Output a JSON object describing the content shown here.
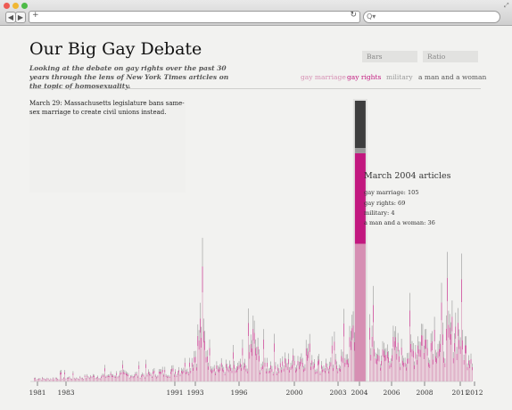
{
  "browser": {
    "back_label": "◀",
    "forward_label": "▶",
    "new_tab_label": "+",
    "reload_label": "↻",
    "search_label": "Q▾"
  },
  "page": {
    "title": "Our Big Gay Debate",
    "subtitle": "Looking at the debate on gay rights over the past 30 years through the lens of New York Times articles on the topic of homosexuality.",
    "modes": [
      "Bars",
      "Ratio"
    ],
    "legend": [
      {
        "label": "gay marriage",
        "color": "#d68fb3"
      },
      {
        "label": "gay rights",
        "color": "#c2187f"
      },
      {
        "label": "military",
        "color": "#9a9a9a"
      },
      {
        "label": "a man and a woman",
        "color": "#555555"
      }
    ],
    "event_note": "March 29: Massachusetts legislature bans same-sex marriage to create civil unions instead."
  },
  "tooltip": {
    "title": "March 2004 articles",
    "rows": [
      "gay marriage: 105",
      "gay rights: 69",
      "military: 4",
      "a man and a woman: 36"
    ]
  },
  "colors": {
    "gay_marriage": "#d68fb3",
    "gay_rights": "#c2187f",
    "military": "#9a9a9a",
    "man_woman": "#555555",
    "highlight": "#3e3e3e"
  },
  "chart_data": {
    "type": "bar",
    "x_ticks": [
      "1981",
      "1983",
      "1991",
      "1993",
      "1996",
      "2000",
      "2003",
      "2004",
      "2006",
      "2008",
      "2011",
      "2012"
    ],
    "x_range": [
      1981,
      2012
    ],
    "highlight": {
      "period": "March 2004",
      "series": [
        {
          "name": "gay marriage",
          "value": 105
        },
        {
          "name": "gay rights",
          "value": 69
        },
        {
          "name": "military",
          "value": 4
        },
        {
          "name": "a man and a woman",
          "value": 36
        }
      ]
    },
    "peaks": [
      {
        "year": 1981.0,
        "value": 4
      },
      {
        "year": 1982.0,
        "value": 3
      },
      {
        "year": 1983.0,
        "value": 5
      },
      {
        "year": 1984.0,
        "value": 4
      },
      {
        "year": 1985.0,
        "value": 6
      },
      {
        "year": 1986.0,
        "value": 7
      },
      {
        "year": 1987.0,
        "value": 9
      },
      {
        "year": 1988.0,
        "value": 8
      },
      {
        "year": 1989.0,
        "value": 9
      },
      {
        "year": 1990.0,
        "value": 11
      },
      {
        "year": 1991.0,
        "value": 13
      },
      {
        "year": 1992.0,
        "value": 22
      },
      {
        "year": 1992.5,
        "value": 38
      },
      {
        "year": 1992.8,
        "value": 72
      },
      {
        "year": 1993.1,
        "value": 45
      },
      {
        "year": 1993.6,
        "value": 24
      },
      {
        "year": 1994.0,
        "value": 18
      },
      {
        "year": 1995.0,
        "value": 15
      },
      {
        "year": 1996.0,
        "value": 18
      },
      {
        "year": 1996.5,
        "value": 55
      },
      {
        "year": 1997.0,
        "value": 22
      },
      {
        "year": 1998.0,
        "value": 20
      },
      {
        "year": 1999.0,
        "value": 22
      },
      {
        "year": 2000.0,
        "value": 30
      },
      {
        "year": 2000.4,
        "value": 38
      },
      {
        "year": 2001.0,
        "value": 22
      },
      {
        "year": 2002.0,
        "value": 18
      },
      {
        "year": 2002.8,
        "value": 28
      },
      {
        "year": 2003.3,
        "value": 38
      },
      {
        "year": 2003.7,
        "value": 70
      },
      {
        "year": 2004.2,
        "value": 105
      },
      {
        "year": 2004.5,
        "value": 90
      },
      {
        "year": 2004.8,
        "value": 60
      },
      {
        "year": 2005.0,
        "value": 40
      },
      {
        "year": 2005.5,
        "value": 30
      },
      {
        "year": 2006.0,
        "value": 35
      },
      {
        "year": 2006.5,
        "value": 42
      },
      {
        "year": 2007.0,
        "value": 32
      },
      {
        "year": 2008.0,
        "value": 40
      },
      {
        "year": 2008.4,
        "value": 60
      },
      {
        "year": 2008.9,
        "value": 42
      },
      {
        "year": 2009.3,
        "value": 62
      },
      {
        "year": 2009.8,
        "value": 40
      },
      {
        "year": 2010.0,
        "value": 48
      },
      {
        "year": 2010.6,
        "value": 60
      },
      {
        "year": 2011.0,
        "value": 68
      },
      {
        "year": 2011.5,
        "value": 40
      },
      {
        "year": 2012.0,
        "value": 35
      }
    ]
  }
}
